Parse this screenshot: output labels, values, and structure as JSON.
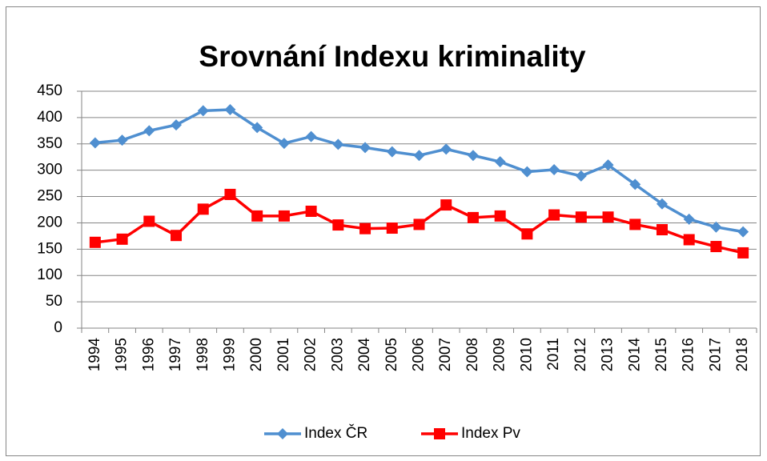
{
  "chart_data": {
    "type": "line",
    "title": "Srovnání Indexu kriminality",
    "categories": [
      "1994",
      "1995",
      "1996",
      "1997",
      "1998",
      "1999",
      "2000",
      "2001",
      "2002",
      "2003",
      "2004",
      "2005",
      "2006",
      "2007",
      "2008",
      "2009",
      "2010",
      "2011",
      "2012",
      "2013",
      "2014",
      "2015",
      "2016",
      "2017",
      "2018"
    ],
    "series": [
      {
        "name": "Index ČR",
        "color": "#4f8fd0",
        "marker": "diamond",
        "values": [
          352,
          357,
          375,
          386,
          413,
          415,
          381,
          351,
          364,
          349,
          343,
          335,
          328,
          340,
          328,
          316,
          297,
          301,
          289,
          310,
          273,
          236,
          207,
          192,
          183
        ]
      },
      {
        "name": "Index Pv",
        "color": "#ff0000",
        "marker": "square",
        "values": [
          163,
          169,
          203,
          176,
          226,
          254,
          213,
          213,
          222,
          196,
          189,
          190,
          197,
          234,
          210,
          213,
          179,
          215,
          211,
          211,
          197,
          187,
          168,
          155,
          143
        ]
      }
    ],
    "ylim": [
      0,
      450
    ],
    "yticks": [
      0,
      50,
      100,
      150,
      200,
      250,
      300,
      350,
      400,
      450
    ],
    "grid": true,
    "legend": "bottom"
  }
}
